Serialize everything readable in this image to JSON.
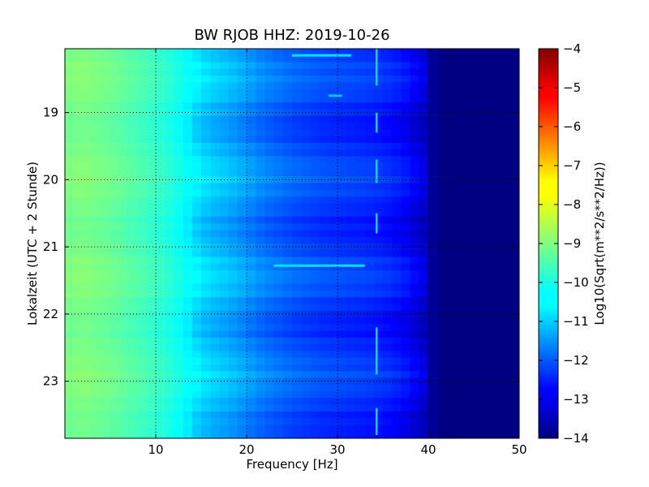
{
  "chart_data": {
    "type": "heatmap",
    "title": "BW RJOB HHZ: 2019-10-26",
    "xlabel": "Frequency [Hz]",
    "ylabel": "Lokalzeit (UTC + 2 Stunde)",
    "xlim": [
      0,
      50
    ],
    "ylim": [
      18.05,
      23.85
    ],
    "y_inverted": true,
    "x_ticks": [
      10,
      20,
      30,
      40,
      50
    ],
    "y_ticks": [
      19,
      20,
      21,
      22,
      23
    ],
    "grid": true,
    "colormap": "jet",
    "colorbar": {
      "label": "Log10(Sqrt(m**2/s**2/Hz))",
      "range": [
        -14,
        -4
      ],
      "ticks": [
        -4,
        -5,
        -6,
        -7,
        -8,
        -9,
        -10,
        -11,
        -12,
        -13,
        -14
      ]
    },
    "spectrum_profile": {
      "frequency_hz": [
        0,
        2,
        5,
        8,
        10,
        12,
        14,
        16,
        18,
        20,
        22,
        25,
        28,
        30,
        33,
        36,
        38,
        39.5,
        40,
        41,
        42,
        50
      ],
      "log10_value": [
        -9.1,
        -9.0,
        -9.2,
        -9.5,
        -9.7,
        -10.0,
        -10.4,
        -10.8,
        -11.0,
        -11.3,
        -11.6,
        -11.9,
        -12.1,
        -12.2,
        -12.3,
        -12.5,
        -12.8,
        -13.2,
        -13.6,
        -13.9,
        -14.0,
        -14.0
      ]
    },
    "features": [
      {
        "kind": "spectral_line",
        "frequency_hz": 34.3,
        "time_ranges": [
          [
            18.05,
            18.6
          ],
          [
            19.0,
            19.3
          ],
          [
            19.7,
            20.05
          ],
          [
            20.5,
            20.8
          ],
          [
            22.2,
            22.9
          ],
          [
            23.4,
            23.8
          ]
        ],
        "log10_value": -10.6
      },
      {
        "kind": "burst",
        "time": 18.15,
        "frequency_range_hz": [
          25,
          31.5
        ],
        "log10_value": -10.5
      },
      {
        "kind": "burst",
        "time": 21.28,
        "frequency_range_hz": [
          23,
          33
        ],
        "log10_value": -10.5
      },
      {
        "kind": "burst",
        "time": 18.75,
        "frequency_range_hz": [
          29,
          30.5
        ],
        "log10_value": -10.8
      }
    ]
  }
}
